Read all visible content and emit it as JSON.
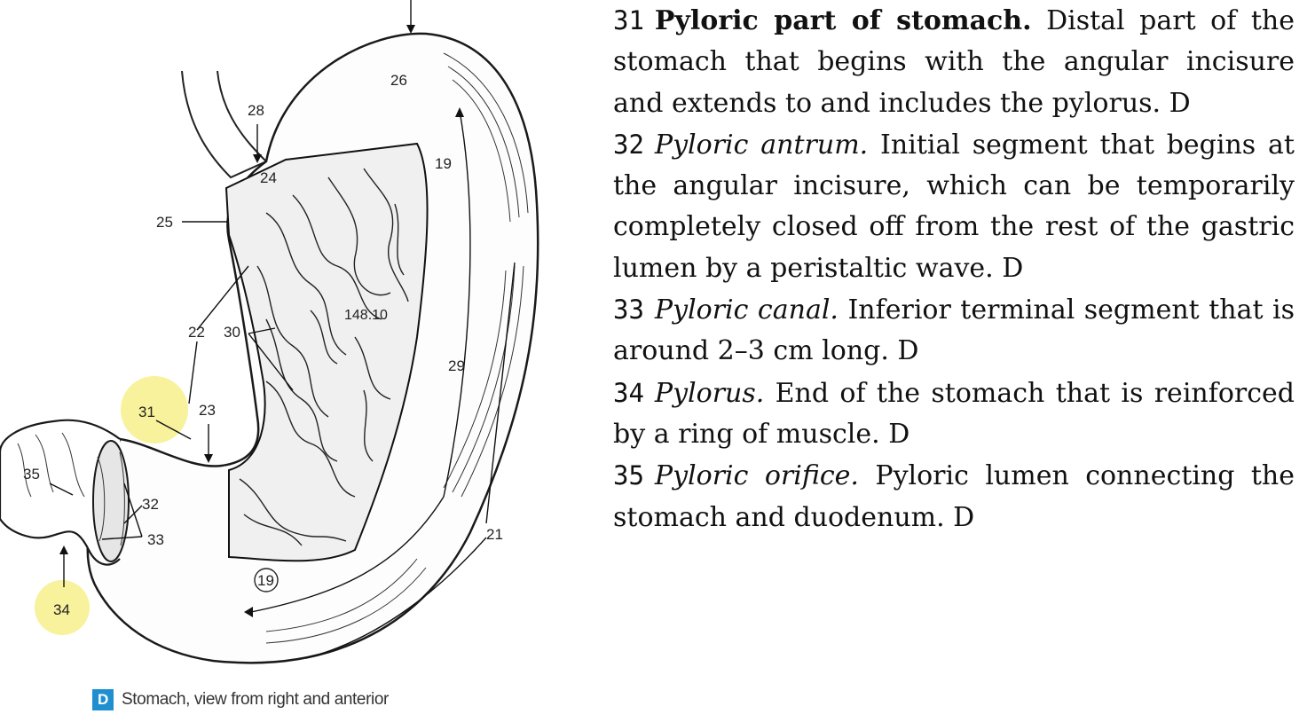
{
  "figure": {
    "labels": {
      "l19a": "19",
      "l19b": "19",
      "l21": "21",
      "l22": "22",
      "l23": "23",
      "l24": "24",
      "l25": "25",
      "l26": "26",
      "l28": "28",
      "l29": "29",
      "l30": "30",
      "l31": "31",
      "l32": "32",
      "l33": "33",
      "l34": "34",
      "l35": "35",
      "lref": "148.10"
    },
    "highlight_color": "#f6f08a",
    "caption_tag": "D",
    "caption_text": "Stomach, view from right and anterior",
    "caption_tag_color": "#1f8fd0"
  },
  "entries": [
    {
      "num": "31",
      "term": "Pyloric part of stomach.",
      "style": "bold",
      "desc": " Distal part of the stomach that begins with the angular incisure and extends to and includes the pylorus. D"
    },
    {
      "num": "32",
      "term": "Pyloric antrum.",
      "style": "italic",
      "desc": " Initial segment that begins at the angular incisure, which can be temporarily completely closed off from the rest of the gastric lumen by a peristaltic wave. D"
    },
    {
      "num": "33",
      "term": "Pyloric canal.",
      "style": "italic",
      "desc": " Inferior terminal segment that is around 2–3 cm long. D"
    },
    {
      "num": "34",
      "term": "Pylorus.",
      "style": "italic",
      "desc": " End of the stomach that is reinforced by a ring of muscle. D"
    },
    {
      "num": "35",
      "term": "Pyloric orifice.",
      "style": "italic",
      "desc": " Pyloric lumen connecting the stomach and duodenum. D"
    }
  ]
}
